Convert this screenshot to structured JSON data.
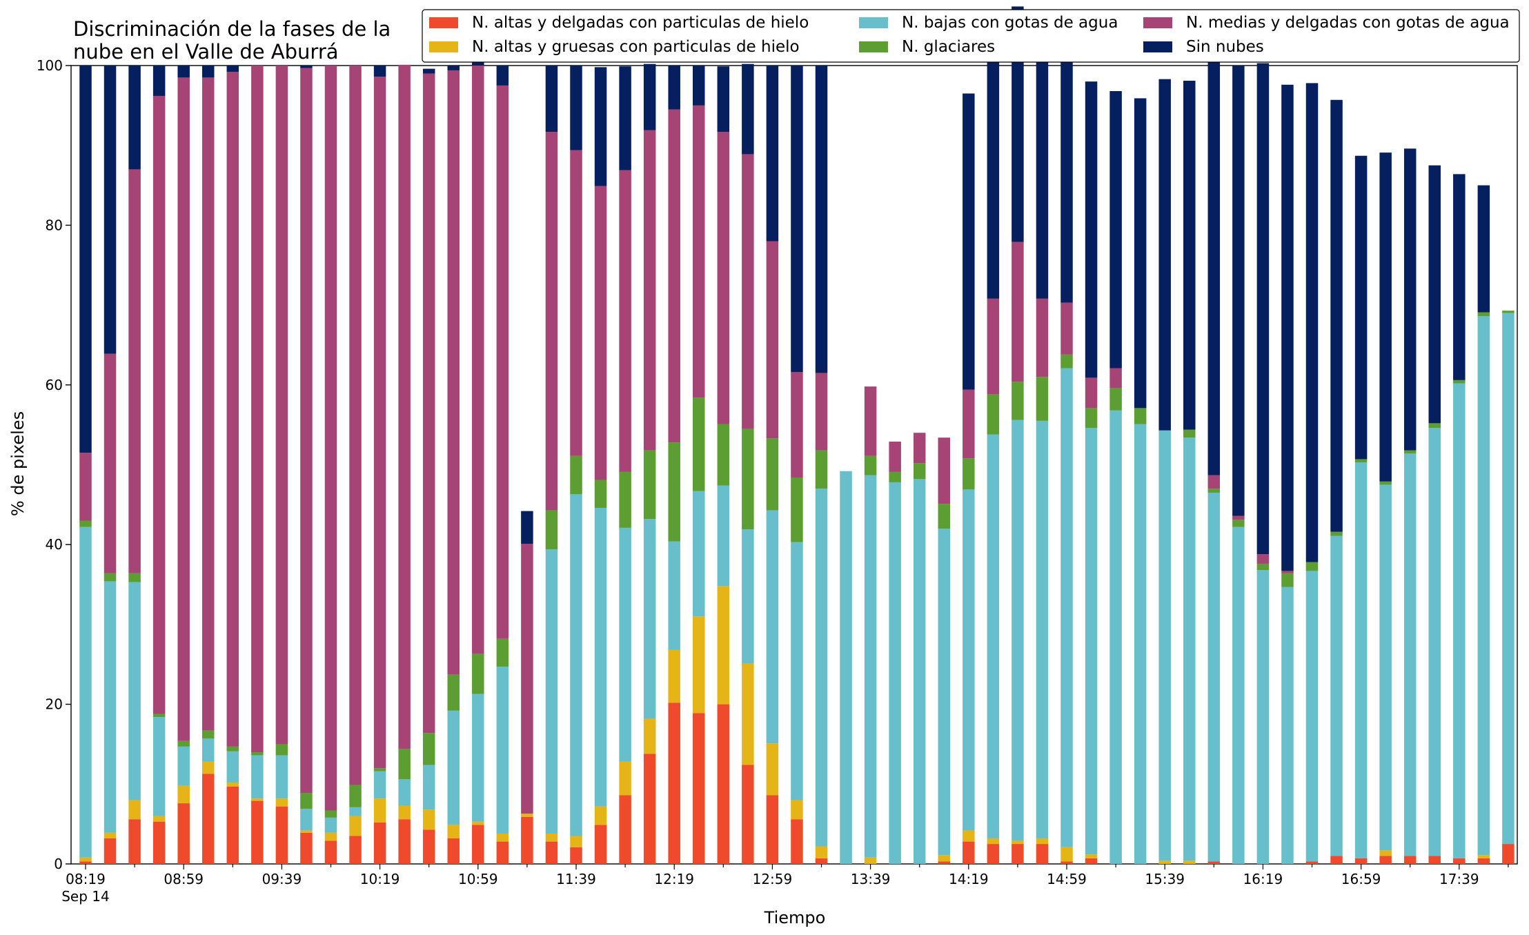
{
  "chart_data": {
    "type": "bar",
    "stacked": true,
    "title_lines": [
      "Discriminación de la fases de la",
      "nube en el Valle de Aburrá"
    ],
    "xlabel": "Tiempo",
    "ylabel": "% de pixeles",
    "ylim": [
      0,
      100
    ],
    "yticks": [
      0,
      20,
      40,
      60,
      80,
      100
    ],
    "grid": false,
    "legend_position": "top-right",
    "x_tick_labels": [
      {
        "index": 0,
        "label": "08:19",
        "sub": "Sep 14"
      },
      {
        "index": 4,
        "label": "08:59"
      },
      {
        "index": 8,
        "label": "09:39"
      },
      {
        "index": 12,
        "label": "10:19"
      },
      {
        "index": 16,
        "label": "10:59"
      },
      {
        "index": 20,
        "label": "11:39"
      },
      {
        "index": 24,
        "label": "12:19"
      },
      {
        "index": 28,
        "label": "12:59"
      },
      {
        "index": 32,
        "label": "13:39"
      },
      {
        "index": 36,
        "label": "14:19"
      },
      {
        "index": 40,
        "label": "14:59"
      },
      {
        "index": 44,
        "label": "15:39"
      },
      {
        "index": 48,
        "label": "16:19"
      },
      {
        "index": 52,
        "label": "16:59"
      },
      {
        "index": 56,
        "label": "17:39"
      }
    ],
    "series": [
      {
        "name": "N. altas y delgadas con particulas de hielo",
        "color": "#ee4a2b",
        "values": [
          0.3,
          3.2,
          5.6,
          5.3,
          7.6,
          11.3,
          9.7,
          7.9,
          7.2,
          3.9,
          2.9,
          3.5,
          5.2,
          5.6,
          4.3,
          3.2,
          4.9,
          2.8,
          5.9,
          2.8,
          2.1,
          4.9,
          8.6,
          13.8,
          20.2,
          18.9,
          20.0,
          12.4,
          8.6,
          5.6,
          0.7,
          0,
          0,
          0,
          0,
          0.3,
          2.8,
          2.5,
          2.5,
          2.5,
          0.3,
          0.7,
          0,
          0,
          0,
          0,
          0.3,
          0,
          0,
          0,
          0.3,
          1.0,
          0.7,
          1.0,
          1.0,
          1.0,
          0.7,
          0.7,
          2.5
        ]
      },
      {
        "name": "N. altas y gruesas con particulas de hielo",
        "color": "#e5b416",
        "values": [
          0.5,
          0.7,
          2.4,
          0.7,
          2.2,
          1.5,
          0.5,
          0.3,
          1.0,
          0.3,
          1.0,
          2.5,
          3.0,
          1.7,
          2.5,
          1.7,
          0.4,
          1.0,
          0.4,
          1.0,
          1.4,
          2.3,
          4.2,
          4.4,
          6.6,
          12.1,
          14.8,
          12.7,
          6.5,
          2.4,
          1.5,
          0,
          0.8,
          0,
          0,
          0.8,
          1.4,
          0.7,
          0.4,
          0.7,
          1.8,
          0.5,
          0,
          0,
          0.4,
          0.4,
          0,
          0,
          0,
          0,
          0,
          0,
          0,
          0.7,
          0,
          0,
          0,
          0.4,
          0
        ]
      },
      {
        "name": "N. bajas con gotas de agua",
        "color": "#67bfcb",
        "values": [
          41.4,
          31.5,
          27.3,
          12.4,
          4.9,
          2.9,
          3.9,
          5.4,
          5.4,
          2.7,
          1.9,
          1.1,
          3.4,
          3.3,
          5.6,
          14.3,
          16.0,
          20.9,
          0,
          35.6,
          42.8,
          37.4,
          29.3,
          25.0,
          13.6,
          15.7,
          12.6,
          16.8,
          29.2,
          32.3,
          44.8,
          49.2,
          47.9,
          47.8,
          48.2,
          40.9,
          42.7,
          50.6,
          52.7,
          52.3,
          60.0,
          53.4,
          56.8,
          55.1,
          53.9,
          53.0,
          46.2,
          42.2,
          36.8,
          34.7,
          36.4,
          40.1,
          49.6,
          45.8,
          50.4,
          53.6,
          59.5,
          67.5,
          66.5
        ]
      },
      {
        "name": "N. glaciares",
        "color": "#5c9e31",
        "values": [
          0.8,
          1.0,
          1.1,
          0.4,
          0.7,
          1.0,
          0.6,
          0.4,
          1.4,
          2.0,
          0.9,
          2.8,
          0.4,
          3.8,
          4.0,
          4.5,
          5.0,
          3.5,
          0,
          4.9,
          4.8,
          3.5,
          7.0,
          8.6,
          12.4,
          11.7,
          7.7,
          12.6,
          9.0,
          8.1,
          4.8,
          0,
          2.4,
          1.3,
          2.0,
          3.1,
          3.9,
          5.0,
          4.8,
          5.5,
          1.7,
          2.5,
          2.8,
          2.0,
          0,
          1.0,
          0.5,
          0.9,
          0.8,
          1.7,
          1.1,
          0.5,
          0.4,
          0.4,
          0.4,
          0.6,
          0.4,
          0.5,
          0.3
        ]
      },
      {
        "name": "N. medias y delgadas con gotas de agua",
        "color": "#a64476",
        "values": [
          8.5,
          27.5,
          50.6,
          77.4,
          83.1,
          81.8,
          84.5,
          86.0,
          85.0,
          90.8,
          93.3,
          90.1,
          86.6,
          85.7,
          82.6,
          75.7,
          73.7,
          69.3,
          33.8,
          47.4,
          38.3,
          36.8,
          37.8,
          40.1,
          41.7,
          36.6,
          36.6,
          34.4,
          24.7,
          13.2,
          9.7,
          0,
          8.7,
          3.8,
          3.8,
          8.3,
          8.6,
          12.0,
          17.5,
          9.8,
          6.5,
          3.8,
          2.5,
          0,
          0,
          0,
          1.7,
          0.5,
          1.2,
          0.3,
          0,
          0,
          0,
          0,
          0,
          0,
          0,
          0,
          0
        ]
      },
      {
        "name": "Sin nubes",
        "color": "#06205f",
        "values": [
          48.5,
          36.1,
          13.0,
          3.8,
          1.5,
          1.5,
          0.8,
          0,
          0,
          0.3,
          0,
          0,
          1.4,
          0,
          0.6,
          0.6,
          2.0,
          2.5,
          4.1,
          8.3,
          10.6,
          14.9,
          13.0,
          8.3,
          5.5,
          5.0,
          8.2,
          11.3,
          22.0,
          38.4,
          38.5,
          0,
          0,
          0,
          0,
          0,
          37.1,
          31.7,
          29.5,
          32.5,
          32.3,
          37.1,
          34.7,
          38.8,
          44.0,
          43.7,
          52.4,
          56.4,
          61.5,
          60.9,
          60.0,
          54.1,
          38.0,
          41.2,
          37.8,
          32.3,
          25.8,
          15.9,
          0
        ]
      }
    ]
  }
}
